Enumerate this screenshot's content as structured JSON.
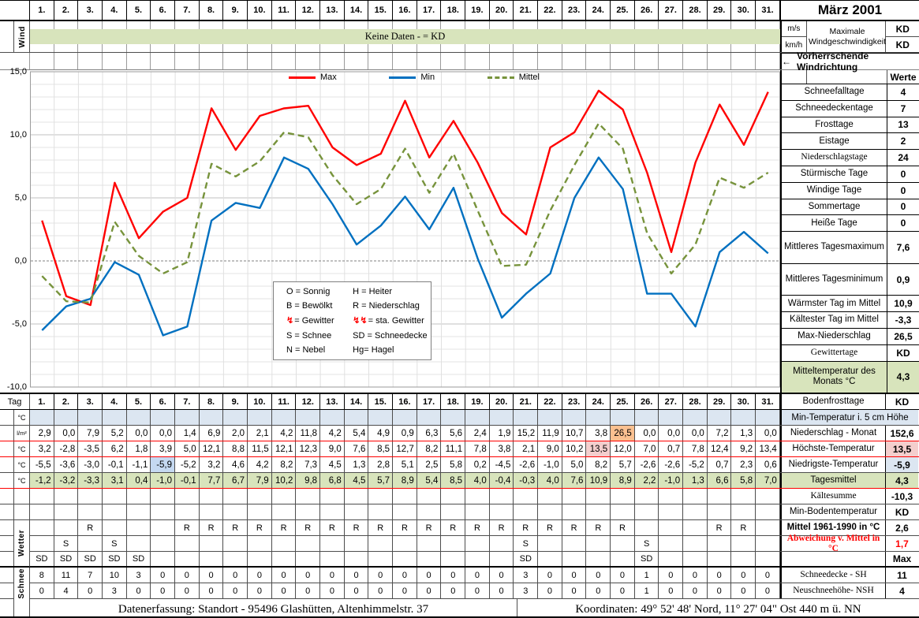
{
  "title": "März 2001",
  "days": [
    "1.",
    "2.",
    "3.",
    "4.",
    "5.",
    "6.",
    "7.",
    "8.",
    "9.",
    "10.",
    "11.",
    "12.",
    "13.",
    "14.",
    "15.",
    "16.",
    "17.",
    "18.",
    "19.",
    "20.",
    "21.",
    "22.",
    "23.",
    "24.",
    "25.",
    "26.",
    "27.",
    "28.",
    "29.",
    "30.",
    "31."
  ],
  "wind": {
    "section_label": "Wind",
    "no_data_text": "Keine Daten -  = KD",
    "unit_ms": "m/s",
    "unit_kmh": "km/h",
    "max_label": "Maximale Windgeschwindigkeit",
    "max_value_ms": "KD",
    "max_value_kmh": "KD",
    "direction_arrow": "←",
    "direction_label": "Vorherrschende Windrichtung"
  },
  "chart_data": {
    "type": "line",
    "x_days": [
      1,
      2,
      3,
      4,
      5,
      6,
      7,
      8,
      9,
      10,
      11,
      12,
      13,
      14,
      15,
      16,
      17,
      18,
      19,
      20,
      21,
      22,
      23,
      24,
      25,
      26,
      27,
      28,
      29,
      30,
      31
    ],
    "series": [
      {
        "name": "Max",
        "color": "#FF0000",
        "dash": false,
        "values": [
          3.2,
          -2.8,
          -3.5,
          6.2,
          1.8,
          3.9,
          5.0,
          12.1,
          8.8,
          11.5,
          12.1,
          12.3,
          9.0,
          7.6,
          8.5,
          12.7,
          8.2,
          11.1,
          7.8,
          3.8,
          2.1,
          9.0,
          10.2,
          13.5,
          12.0,
          7.0,
          0.7,
          7.8,
          12.4,
          9.2,
          13.4
        ]
      },
      {
        "name": "Min",
        "color": "#0070C0",
        "dash": false,
        "values": [
          -5.5,
          -3.6,
          -3.0,
          -0.1,
          -1.1,
          -5.9,
          -5.2,
          3.2,
          4.6,
          4.2,
          8.2,
          7.3,
          4.5,
          1.3,
          2.8,
          5.1,
          2.5,
          5.8,
          0.2,
          -4.5,
          -2.6,
          -1.0,
          5.0,
          8.2,
          5.7,
          -2.6,
          -2.6,
          -5.2,
          0.7,
          2.3,
          0.6
        ]
      },
      {
        "name": "Mittel",
        "color": "#77933C",
        "dash": true,
        "values": [
          -1.2,
          -3.2,
          -3.3,
          3.1,
          0.4,
          -1.0,
          -0.1,
          7.7,
          6.7,
          7.9,
          10.2,
          9.8,
          6.8,
          4.5,
          5.7,
          8.9,
          5.4,
          8.5,
          4.0,
          -0.4,
          -0.3,
          4.0,
          7.6,
          10.9,
          8.9,
          2.2,
          -1.0,
          1.3,
          6.6,
          5.8,
          7.0
        ]
      }
    ],
    "ylim": [
      -10,
      15
    ],
    "yticks": [
      {
        "v": 15,
        "label": "15,0"
      },
      {
        "v": 10,
        "label": "10,0"
      },
      {
        "v": 5,
        "label": "5,0"
      },
      {
        "v": 0,
        "label": "0,0"
      },
      {
        "v": -5,
        "label": "-5,0"
      },
      {
        "v": -10,
        "label": "-10,0"
      }
    ],
    "grid": true,
    "legend_position": "top-center"
  },
  "code_legend": {
    "rows": [
      [
        {
          "icon": "",
          "text": "O = Sonnig"
        },
        {
          "icon": "",
          "text": "H = Heiter"
        }
      ],
      [
        {
          "icon": "",
          "text": "B = Bewölkt"
        },
        {
          "icon": "",
          "text": "R = Niederschlag"
        }
      ],
      [
        {
          "icon": "↯",
          "text": "= Gewitter"
        },
        {
          "icon": "↯↯",
          "text": "= sta. Gewitter"
        }
      ],
      [
        {
          "icon": "",
          "text": "S = Schnee"
        },
        {
          "icon": "",
          "text": "SD = Schneedecke"
        }
      ],
      [
        {
          "icon": "",
          "text": "N = Nebel"
        },
        {
          "icon": "",
          "text": "Hg= Hagel"
        }
      ]
    ]
  },
  "sidebar": {
    "header": "Werte",
    "stats": [
      {
        "label": "Schneefalltage",
        "value": "4"
      },
      {
        "label": "Schneedeckentage",
        "value": "7"
      },
      {
        "label": "Frosttage",
        "value": "13"
      },
      {
        "label": "Eistage",
        "value": "2"
      },
      {
        "label": "Niederschlagstage",
        "value": "24",
        "serif": true
      },
      {
        "label": "Stürmische Tage",
        "value": "0"
      },
      {
        "label": "Windige Tage",
        "value": "0"
      },
      {
        "label": "Sommertage",
        "value": "0"
      },
      {
        "label": "Heiße Tage",
        "value": "0"
      },
      {
        "label": "Mittleres Tagesmaximum",
        "value": "7,6",
        "tall": true
      },
      {
        "label": "Mittleres Tagesminimum",
        "value": "0,9",
        "tall": true
      },
      {
        "label": "Wärmster Tag im Mittel",
        "value": "10,9"
      },
      {
        "label": "Kältester Tag im Mittel",
        "value": "-3,3"
      },
      {
        "label": "Max-Niederschlag",
        "value": "26,5"
      },
      {
        "label": "Gewittertage",
        "value": "KD",
        "serif": true
      },
      {
        "label": "Mitteltemperatur des Monats °C",
        "value": "4,3",
        "tall": true,
        "green": true
      }
    ]
  },
  "table": {
    "day_label": "Tag",
    "group_labels": {
      "wetter": "Wetter",
      "schnee": "Schnee"
    },
    "tag_sidebar": {
      "label": "Bodenfrosttage",
      "value": "KD"
    },
    "rows": [
      {
        "id": "min5cm",
        "unit": "°C",
        "center": true,
        "cell_bg": "#DCE6F1",
        "values": [],
        "sidebar": {
          "span": true,
          "label": "Min-Temperatur i. 5 cm Höhe",
          "bg": "#DCE6F1"
        }
      },
      {
        "id": "niederschlag",
        "unit": "l/m²",
        "red_bottom": true,
        "values": [
          "2,9",
          "0,0",
          "7,9",
          "5,2",
          "0,0",
          "0,0",
          "1,4",
          "6,9",
          "2,0",
          "2,1",
          "4,2",
          "11,8",
          "4,2",
          "5,4",
          "4,9",
          "0,9",
          "6,3",
          "5,6",
          "2,4",
          "1,9",
          "15,2",
          "11,9",
          "10,7",
          "3,8",
          "26,5",
          "0,0",
          "0,0",
          "0,0",
          "7,2",
          "1,3",
          "0,0"
        ],
        "highlights": {
          "24": "#FAC090"
        },
        "sidebar": {
          "label": "Niederschlag - Monat",
          "value": "152,6"
        }
      },
      {
        "id": "hoechste",
        "unit": "°C",
        "red_bottom": true,
        "values": [
          "3,2",
          "-2,8",
          "-3,5",
          "6,2",
          "1,8",
          "3,9",
          "5,0",
          "12,1",
          "8,8",
          "11,5",
          "12,1",
          "12,3",
          "9,0",
          "7,6",
          "8,5",
          "12,7",
          "8,2",
          "11,1",
          "7,8",
          "3,8",
          "2,1",
          "9,0",
          "10,2",
          "13,5",
          "12,0",
          "7,0",
          "0,7",
          "7,8",
          "12,4",
          "9,2",
          "13,4"
        ],
        "highlights": {
          "23": "#F4CECD"
        },
        "sidebar": {
          "label": "Höchste-Temperatur",
          "value": "13,5",
          "value_bg": "#F4CECD"
        }
      },
      {
        "id": "niedrigste",
        "unit": "°C",
        "values": [
          "-5,5",
          "-3,6",
          "-3,0",
          "-0,1",
          "-1,1",
          "-5,9",
          "-5,2",
          "3,2",
          "4,6",
          "4,2",
          "8,2",
          "7,3",
          "4,5",
          "1,3",
          "2,8",
          "5,1",
          "2,5",
          "5,8",
          "0,2",
          "-4,5",
          "-2,6",
          "-1,0",
          "5,0",
          "8,2",
          "5,7",
          "-2,6",
          "-2,6",
          "-5,2",
          "0,7",
          "2,3",
          "0,6"
        ],
        "highlights": {
          "5": "#C5D9F1"
        },
        "sidebar": {
          "label": "Niedrigste-Temperatur",
          "value": "-5,9",
          "value_bg": "#DCE6F1"
        }
      },
      {
        "id": "tagesmittel",
        "unit": "°C",
        "red_bottom": true,
        "cell_bg": "#D8E4BC",
        "values": [
          "-1,2",
          "-3,2",
          "-3,3",
          "3,1",
          "0,4",
          "-1,0",
          "-0,1",
          "7,7",
          "6,7",
          "7,9",
          "10,2",
          "9,8",
          "6,8",
          "4,5",
          "5,7",
          "8,9",
          "5,4",
          "8,5",
          "4,0",
          "-0,4",
          "-0,3",
          "4,0",
          "7,6",
          "10,9",
          "8,9",
          "2,2",
          "-1,0",
          "1,3",
          "6,6",
          "5,8",
          "7,0"
        ],
        "sidebar": {
          "label": "Tagesmittel",
          "value": "4,3",
          "bg": "#D8E4BC",
          "value_bg": "#D8E4BC"
        }
      },
      {
        "id": "leer1",
        "unit": "",
        "values": [],
        "sidebar": {
          "label": "Kältesumme",
          "value": "-10,3",
          "serif": true
        }
      },
      {
        "id": "leer2",
        "unit": "",
        "values": [],
        "sidebar": {
          "label": "Min-Bodentemperatur",
          "value": "KD"
        }
      },
      {
        "id": "wetter-r",
        "unit": "",
        "center": true,
        "values": [
          "",
          "",
          "R",
          "",
          "",
          "",
          "R",
          "R",
          "R",
          "R",
          "R",
          "R",
          "R",
          "R",
          "R",
          "R",
          "R",
          "R",
          "R",
          "R",
          "R",
          "R",
          "R",
          "R",
          "R",
          "",
          "",
          "",
          "R",
          "R",
          ""
        ],
        "sidebar": {
          "label": "Mittel 1961-1990 in °C",
          "value": "2,6",
          "bold": true
        }
      },
      {
        "id": "wetter-s",
        "unit": "",
        "center": true,
        "values": [
          "",
          "S",
          "",
          "S",
          "",
          "",
          "",
          "",
          "",
          "",
          "",
          "",
          "",
          "",
          "",
          "",
          "",
          "",
          "",
          "",
          "S",
          "",
          "",
          "",
          "",
          "S",
          "",
          "",
          "",
          "",
          ""
        ],
        "sidebar": {
          "label": "Abweichung v. Mittel in °C",
          "value": "1,7",
          "bold": true,
          "serif": true,
          "red": true
        }
      },
      {
        "id": "wetter-sd",
        "unit": "",
        "center": true,
        "thick_bottom": true,
        "values": [
          "SD",
          "SD",
          "SD",
          "SD",
          "SD",
          "",
          "",
          "",
          "",
          "",
          "",
          "",
          "",
          "",
          "",
          "",
          "",
          "",
          "",
          "",
          "SD",
          "",
          "",
          "",
          "",
          "SD",
          "",
          "",
          "",
          "",
          ""
        ],
        "sidebar": {
          "label": "",
          "value": "Max"
        }
      },
      {
        "id": "schneedecke",
        "unit": "",
        "center": true,
        "values": [
          "8",
          "11",
          "7",
          "10",
          "3",
          "0",
          "0",
          "0",
          "0",
          "0",
          "0",
          "0",
          "0",
          "0",
          "0",
          "0",
          "0",
          "0",
          "0",
          "0",
          "3",
          "0",
          "0",
          "0",
          "0",
          "1",
          "0",
          "0",
          "0",
          "0",
          "0"
        ],
        "sidebar": {
          "label": "Schneedecke -  SH",
          "value": "11",
          "serif": true
        }
      },
      {
        "id": "neuschnee",
        "unit": "",
        "center": true,
        "values": [
          "0",
          "4",
          "0",
          "3",
          "0",
          "0",
          "0",
          "0",
          "0",
          "0",
          "0",
          "0",
          "0",
          "0",
          "0",
          "0",
          "0",
          "0",
          "0",
          "0",
          "3",
          "0",
          "0",
          "0",
          "0",
          "1",
          "0",
          "0",
          "0",
          "0",
          "0"
        ],
        "sidebar": {
          "label": "Neuschneehöhe- NSH",
          "value": "4",
          "serif": true
        }
      }
    ]
  },
  "footer": {
    "left": "Datenerfassung:  Standort -  95496  Glashütten, Altenhimmelstr. 37",
    "right": "Koordinaten:  49° 52' 48' Nord,   11° 27' 04\" Ost  440 m ü. NN"
  }
}
